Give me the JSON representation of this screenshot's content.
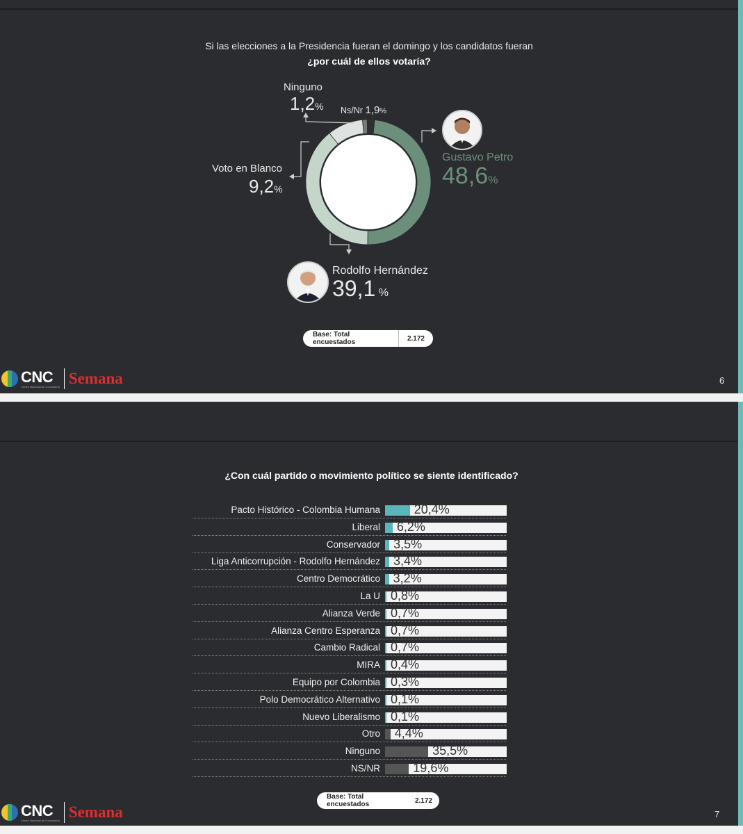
{
  "colors": {
    "slide_bg": "#2b2c30",
    "accent_right_bar": "#6fb7b8",
    "petro": "#6b8f7b",
    "hernandez": "#c4d6c9",
    "blanco": "#dfe3e0",
    "ninguno": "#7a7a7a",
    "nsnr": "#2f2f2f",
    "bar_teal": "#59b6bb",
    "bar_gray": "#555555",
    "bar_track": "#f3f3f3"
  },
  "slide1": {
    "question_line1": "Si las elecciones a la Presidencia fueran el domingo y los candidatos fueran",
    "question_line2": "¿por cuál de ellos votaría?",
    "labels": {
      "ninguno_name": "Ninguno",
      "ninguno_value": "1,2",
      "nsnr_name": "Ns/Nr",
      "nsnr_value": "1,9",
      "blanco_name": "Voto en Blanco",
      "blanco_value": "9,2",
      "petro_name": "Gustavo Petro",
      "petro_value": "48,6",
      "hernandez_name": "Rodolfo Hernández",
      "hernandez_value": "39,1",
      "percent_sign": "%"
    },
    "base_label": "Base: Total encuestados",
    "base_value": "2.172",
    "page_number": "6",
    "footer": {
      "cnc": "CNC",
      "cnc_sub": "Centro Nacional de Consultoría",
      "semana": "Semana"
    }
  },
  "slide2": {
    "question": "¿Con cuál partido o movimiento político se siente identificado?",
    "base_label": "Base: Total encuestados",
    "base_value": "2.172",
    "page_number": "7",
    "footer": {
      "cnc": "CNC",
      "cnc_sub": "Centro Nacional de Consultoría",
      "semana": "Semana"
    }
  },
  "chart_data": [
    {
      "type": "pie",
      "variant": "donut",
      "labels": [
        "Gustavo Petro",
        "Rodolfo Hernández",
        "Voto en Blanco",
        "Ninguno",
        "Ns/Nr"
      ],
      "values": [
        48.6,
        39.1,
        9.2,
        1.2,
        1.9
      ],
      "value_labels": [
        "48,6%",
        "39,1%",
        "9,2%",
        "1,2%",
        "1,9%"
      ],
      "colors": [
        "#6b8f7b",
        "#c4d6c9",
        "#dfe3e0",
        "#7a7a7a",
        "#2f2f2f"
      ],
      "title": "Si las elecciones a la Presidencia fueran el domingo y los candidatos fueran ¿por cuál de ellos votaría?"
    },
    {
      "type": "bar",
      "orientation": "horizontal",
      "title": "¿Con cuál partido o movimiento político se siente identificado?",
      "categories": [
        "Pacto Histórico - Colombia Humana",
        "Liberal",
        "Conservador",
        "Liga Anticorrupción - Rodolfo Hernández",
        "Centro Democrático",
        "La U",
        "Alianza Verde",
        "Alianza Centro Esperanza",
        "Cambio Radical",
        "MIRA",
        "Equipo por Colombia",
        "Polo Democrático Alternativo",
        "Nuevo Liberalismo",
        "Otro",
        "Ninguno",
        "NS/NR"
      ],
      "values": [
        20.4,
        6.2,
        3.5,
        3.4,
        3.2,
        0.8,
        0.7,
        0.7,
        0.7,
        0.4,
        0.3,
        0.1,
        0.1,
        4.4,
        35.5,
        19.6
      ],
      "value_labels": [
        "20,4%",
        "6,2%",
        "3,5%",
        "3,4%",
        "3,2%",
        "0,8%",
        "0,7%",
        "0,7%",
        "0,7%",
        "0,4%",
        "0,3%",
        "0,1%",
        "0,1%",
        "4,4%",
        "35,5%",
        "19,6%"
      ],
      "bar_colors": [
        "teal",
        "teal",
        "teal",
        "teal",
        "teal",
        "teal",
        "teal",
        "teal",
        "teal",
        "teal",
        "teal",
        "teal",
        "teal",
        "gray",
        "gray",
        "gray"
      ],
      "xlim": [
        0,
        100
      ]
    }
  ]
}
